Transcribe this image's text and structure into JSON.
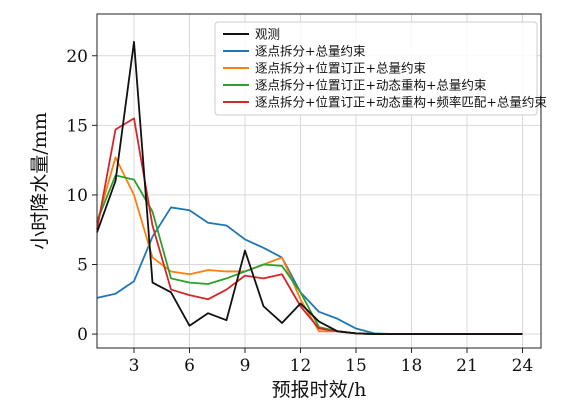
{
  "chart_data": {
    "type": "line",
    "xlabel": "预报时效/h",
    "ylabel": "小时降水量/mm",
    "xlim": [
      1,
      25
    ],
    "ylim": [
      -1,
      23
    ],
    "xticks": [
      3,
      6,
      9,
      12,
      15,
      18,
      21,
      24
    ],
    "yticks": [
      0,
      5,
      10,
      15,
      20
    ],
    "grid": true,
    "legend_position": "top-right",
    "x": [
      1,
      2,
      3,
      4,
      5,
      6,
      7,
      8,
      9,
      10,
      11,
      12,
      13,
      14,
      15,
      16,
      17,
      18,
      19,
      20,
      21,
      22,
      23,
      24
    ],
    "series": [
      {
        "name": "观测",
        "color": "#111111",
        "values": [
          7.3,
          11.0,
          21.0,
          3.7,
          3.0,
          0.6,
          1.5,
          1.0,
          6.0,
          2.0,
          0.8,
          2.2,
          0.9,
          0.2,
          0.05,
          0,
          0,
          0,
          0,
          0,
          0,
          0,
          0,
          0
        ]
      },
      {
        "name": "逐点拆分+总量约束",
        "color": "#1f77b4",
        "values": [
          2.6,
          2.9,
          3.8,
          7.0,
          9.1,
          8.9,
          8.0,
          7.8,
          6.8,
          6.2,
          5.5,
          3.0,
          1.6,
          1.1,
          0.4,
          0.05,
          0,
          0,
          0,
          0,
          0,
          0,
          0,
          0
        ]
      },
      {
        "name": "逐点拆分+位置订正+总量约束",
        "color": "#ff7f0e",
        "values": [
          8.0,
          12.7,
          10.0,
          5.5,
          4.5,
          4.3,
          4.6,
          4.5,
          4.5,
          5.0,
          5.5,
          2.5,
          0.2,
          0.2,
          0.05,
          0,
          0,
          0,
          0,
          0,
          0,
          0,
          0,
          0
        ]
      },
      {
        "name": "逐点拆分+位置订正+动态重构+总量约束",
        "color": "#2ca02c",
        "values": [
          8.1,
          11.4,
          11.1,
          8.8,
          4.0,
          3.7,
          3.6,
          4.0,
          4.5,
          5.0,
          4.9,
          3.0,
          0.5,
          0.2,
          0.05,
          0,
          0,
          0,
          0,
          0,
          0,
          0,
          0,
          0
        ]
      },
      {
        "name": "逐点拆分+位置订正+动态重构+频率匹配+总量约束",
        "color": "#d62728",
        "values": [
          7.5,
          14.7,
          15.5,
          7.8,
          3.2,
          2.8,
          2.5,
          3.2,
          4.2,
          4.0,
          4.3,
          2.0,
          0.4,
          0.2,
          0.05,
          0,
          0,
          0,
          0,
          0,
          0,
          0,
          0,
          0
        ]
      }
    ]
  }
}
